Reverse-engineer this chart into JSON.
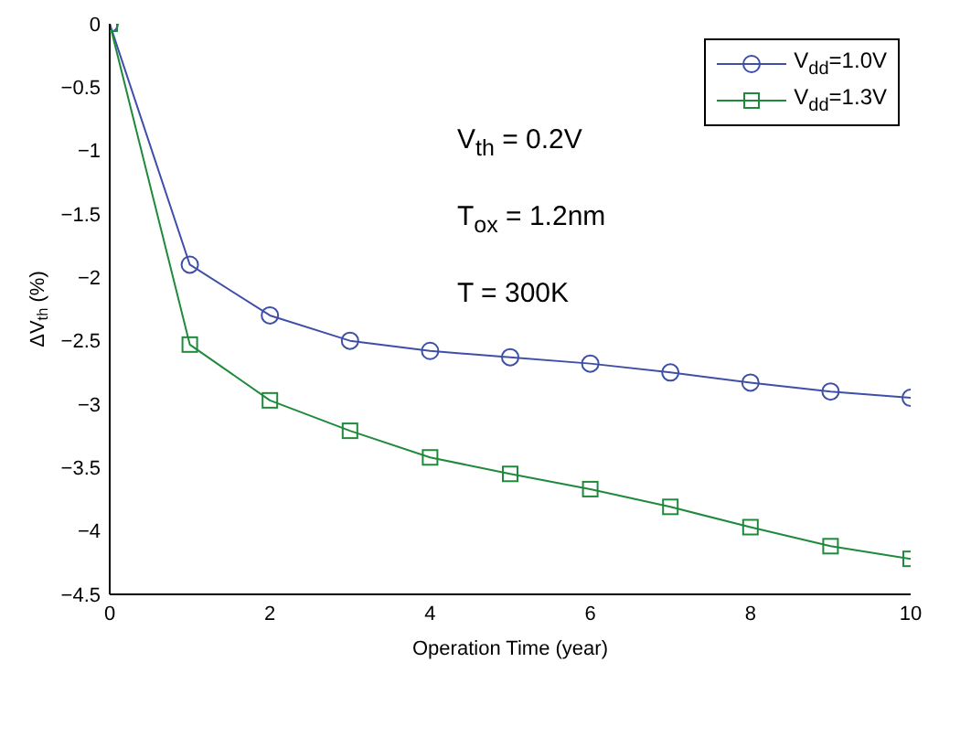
{
  "chart_data": {
    "type": "line",
    "xlabel": "Operation Time (year)",
    "ylabel": "ΔV$_{th}$ (%)",
    "x": [
      0,
      1,
      2,
      3,
      4,
      5,
      6,
      7,
      8,
      9,
      10
    ],
    "series": [
      {
        "name": "V$_{dd}$=1.0V",
        "color": "#3f4fa8",
        "marker": "circle",
        "values": [
          0,
          -1.9,
          -2.3,
          -2.5,
          -2.58,
          -2.63,
          -2.68,
          -2.75,
          -2.83,
          -2.9,
          -2.95
        ]
      },
      {
        "name": "V$_{dd}$=1.3V",
        "color": "#1f8a3c",
        "marker": "square",
        "values": [
          0,
          -2.53,
          -2.97,
          -3.21,
          -3.42,
          -3.55,
          -3.67,
          -3.81,
          -3.97,
          -4.12,
          -4.22
        ]
      }
    ],
    "xlim": [
      0,
      10
    ],
    "xticks": [
      0,
      2,
      4,
      6,
      8,
      10
    ],
    "ylim": [
      -4.5,
      0
    ],
    "yticks": [
      -4.5,
      -4,
      -3.5,
      -3,
      -2.5,
      -2,
      -1.5,
      -1,
      -0.5,
      0
    ],
    "grid": false,
    "legend": "top right",
    "line_style": "solid",
    "annotations": [
      "V$_{th}$ = 0.2V",
      "T$_{ox}$ = 1.2nm",
      "T = 300K"
    ]
  }
}
